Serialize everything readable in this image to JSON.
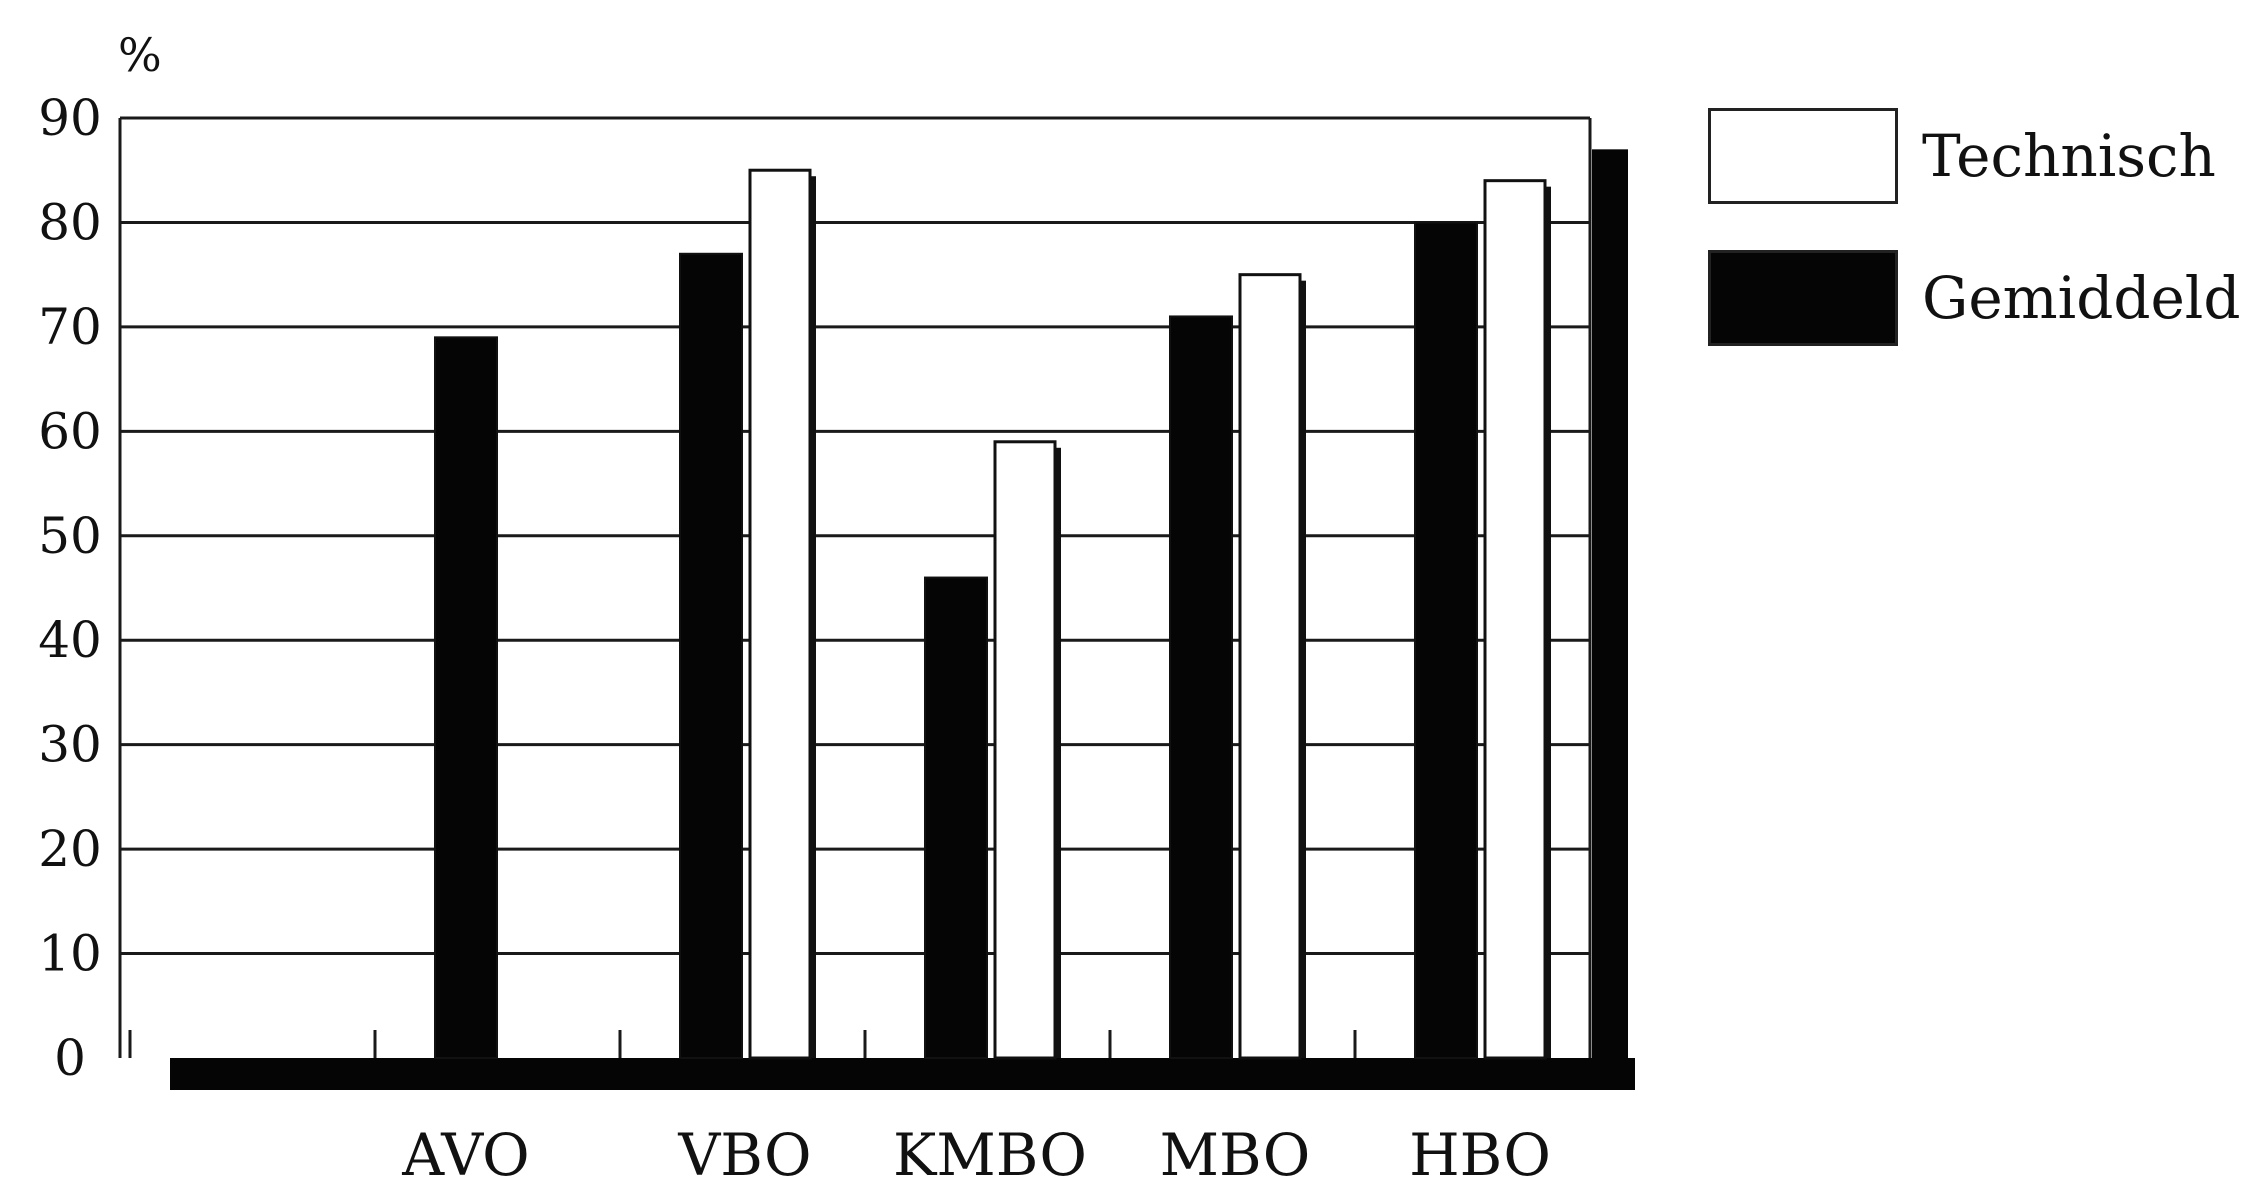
{
  "chart_data": {
    "type": "bar",
    "ylabel": "%",
    "ylim": [
      0,
      90
    ],
    "y_ticks": [
      "0",
      "10",
      "20",
      "30",
      "40",
      "50",
      "60",
      "70",
      "80",
      "90"
    ],
    "grid": true,
    "legend_position": "right",
    "categories": [
      "AVO",
      "VBO",
      "KMBO",
      "MBO",
      "HBO"
    ],
    "series": [
      {
        "name": "Gemiddeld",
        "color": "#050505",
        "values": [
          69,
          77,
          46,
          71,
          80
        ]
      },
      {
        "name": "Technisch",
        "color": "#ffffff",
        "values": [
          null,
          85,
          59,
          75,
          84
        ]
      }
    ],
    "extra_bar": {
      "series": "Gemiddeld",
      "value": 87
    }
  },
  "legend": {
    "items": [
      {
        "label": "Technisch",
        "swatch": "#ffffff"
      },
      {
        "label": "Gemiddeld",
        "swatch": "#050505"
      }
    ]
  }
}
